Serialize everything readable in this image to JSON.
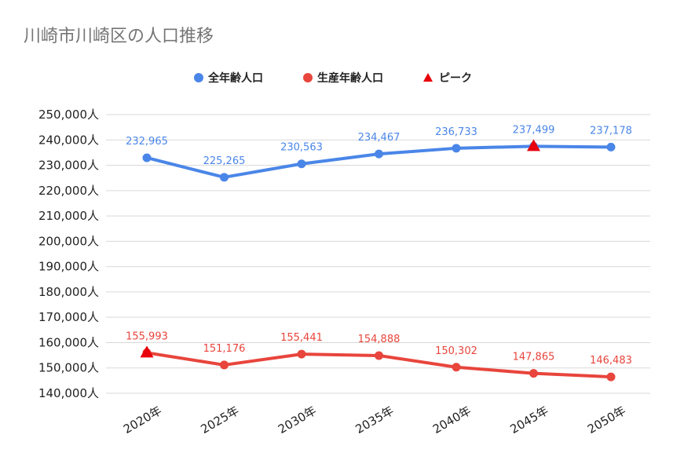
{
  "chart_data": {
    "type": "line",
    "title": "川崎市川崎区の人口推移",
    "categories": [
      "2020年",
      "2025年",
      "2030年",
      "2035年",
      "2040年",
      "2045年",
      "2050年"
    ],
    "ylim": [
      140000,
      250000
    ],
    "yticks": [
      250000,
      240000,
      230000,
      220000,
      210000,
      200000,
      190000,
      180000,
      170000,
      160000,
      150000,
      140000
    ],
    "ytick_labels": [
      "250,000人",
      "240,000人",
      "230,000人",
      "220,000人",
      "210,000人",
      "200,000人",
      "190,000人",
      "180,000人",
      "170,000人",
      "160,000人",
      "150,000人",
      "140,000人"
    ],
    "grid": true,
    "legend_position": "top-center",
    "series": [
      {
        "name": "全年齢人口",
        "color": "#4a86e8",
        "values": [
          232965,
          225265,
          230563,
          234467,
          236733,
          237499,
          237178
        ],
        "labels": [
          "232,965",
          "225,265",
          "230,563",
          "234,467",
          "236,733",
          "237,499",
          "237,178"
        ]
      },
      {
        "name": "生産年齢人口",
        "color": "#e8453c",
        "values": [
          155993,
          151176,
          155441,
          154888,
          150302,
          147865,
          146483
        ],
        "labels": [
          "155,993",
          "151,176",
          "155,441",
          "154,888",
          "150,302",
          "147,865",
          "146,483"
        ]
      }
    ],
    "peak": {
      "name": "ピーク",
      "color": "#e8000b",
      "points": [
        {
          "series": 0,
          "index": 5
        },
        {
          "series": 1,
          "index": 0
        }
      ]
    }
  }
}
